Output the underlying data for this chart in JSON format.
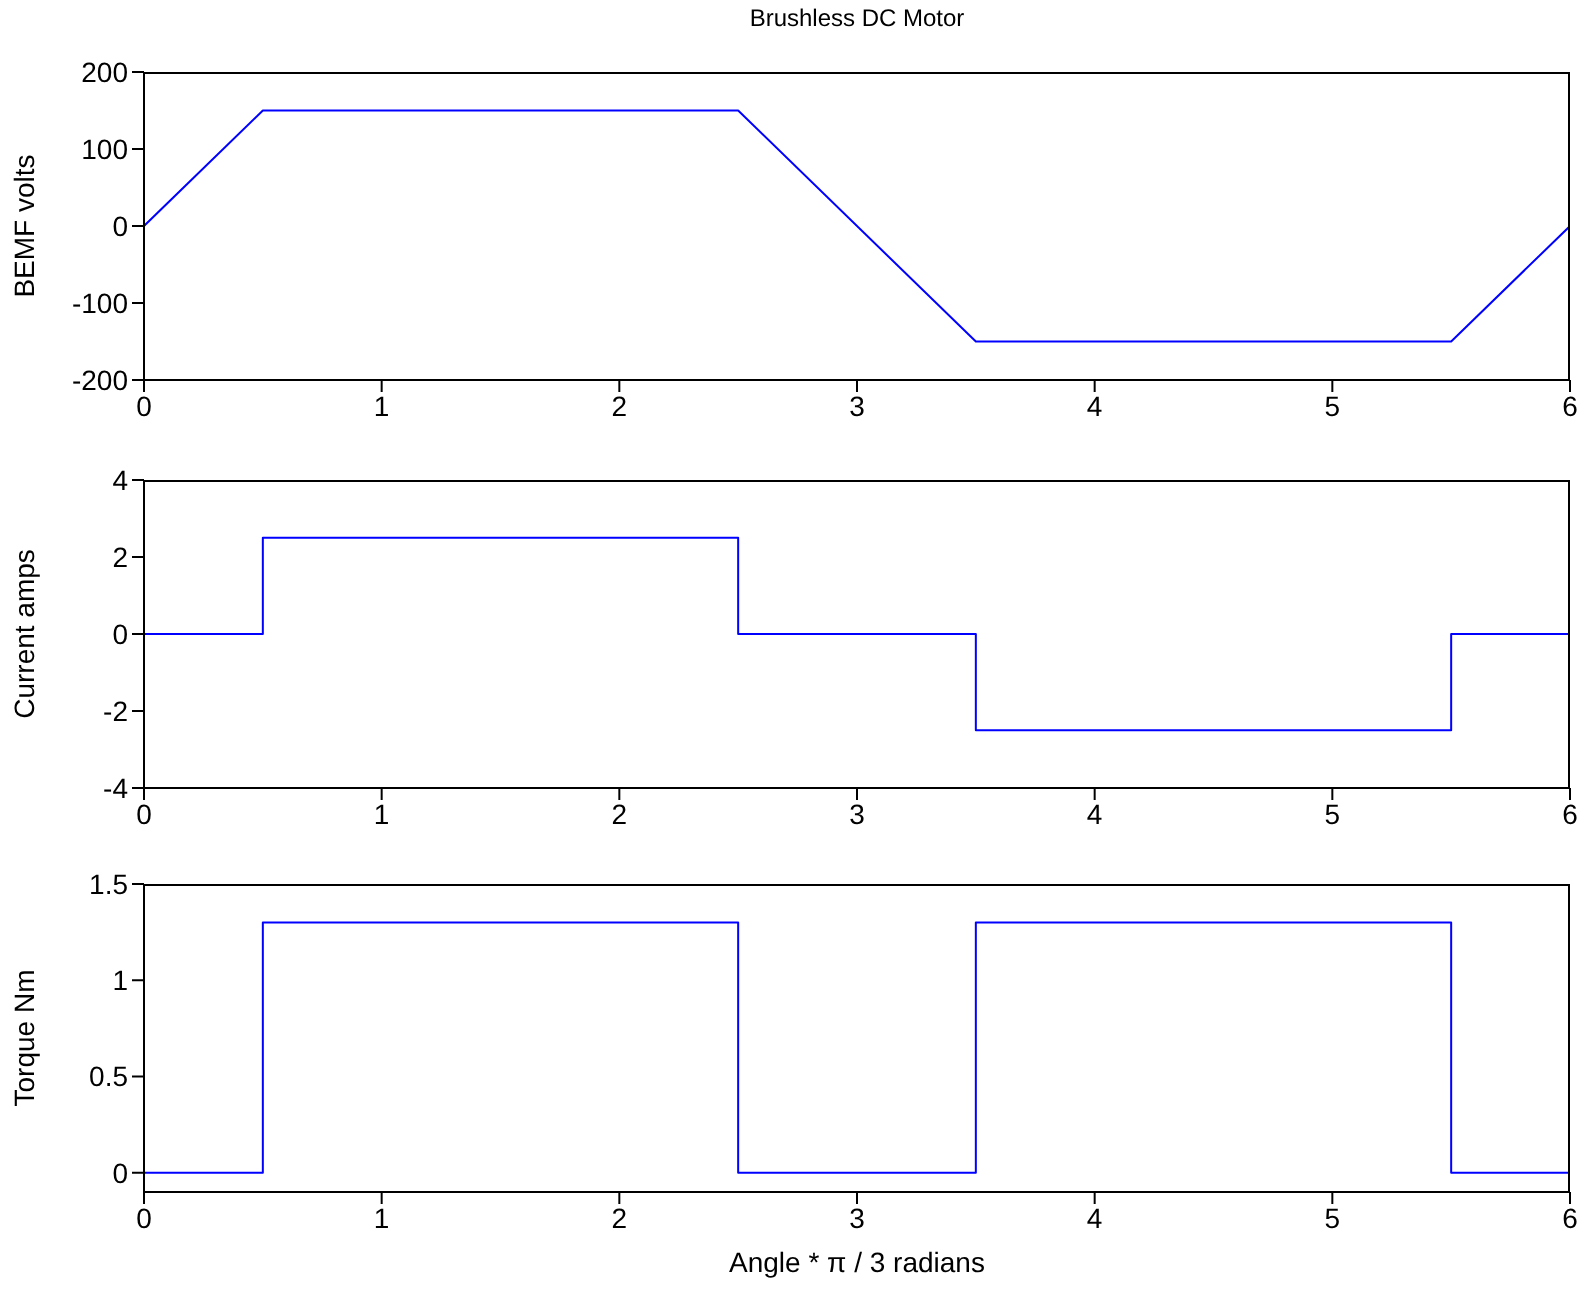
{
  "chart_data": [
    {
      "type": "line",
      "title": "Brushless DC Motor",
      "ylabel": "BEMF volts",
      "x": [
        0,
        0.5,
        2.5,
        3.5,
        5.5,
        6
      ],
      "values": [
        0,
        150,
        150,
        -150,
        -150,
        0
      ],
      "color": "#0000ff",
      "xlim": [
        0,
        6
      ],
      "xticks": [
        0,
        1,
        2,
        3,
        4,
        5,
        6
      ],
      "ylim": [
        -200,
        200
      ],
      "yticks": [
        -200,
        -100,
        0,
        100,
        200
      ],
      "grid": false,
      "legend": false
    },
    {
      "type": "step",
      "ylabel": "Current amps",
      "x": [
        0,
        0.5,
        2.5,
        3.5,
        5.5,
        6
      ],
      "values": [
        0,
        2.5,
        0,
        -2.5,
        0,
        0
      ],
      "color": "#0000ff",
      "xlim": [
        0,
        6
      ],
      "xticks": [
        0,
        1,
        2,
        3,
        4,
        5,
        6
      ],
      "ylim": [
        -4,
        4
      ],
      "yticks": [
        -4,
        -2,
        0,
        2,
        4
      ],
      "grid": false,
      "legend": false
    },
    {
      "type": "step",
      "ylabel": "Torque Nm",
      "xlabel": "Angle * π / 3 radians",
      "x": [
        0,
        0.5,
        2.5,
        3.5,
        5.5,
        6
      ],
      "values": [
        0,
        1.3,
        0,
        1.3,
        0,
        0
      ],
      "color": "#0000ff",
      "xlim": [
        0,
        6
      ],
      "xticks": [
        0,
        1,
        2,
        3,
        4,
        5,
        6
      ],
      "ylim": [
        -0.1,
        1.5
      ],
      "yticks": [
        0,
        0.5,
        1,
        1.5
      ],
      "grid": false,
      "legend": false
    }
  ]
}
